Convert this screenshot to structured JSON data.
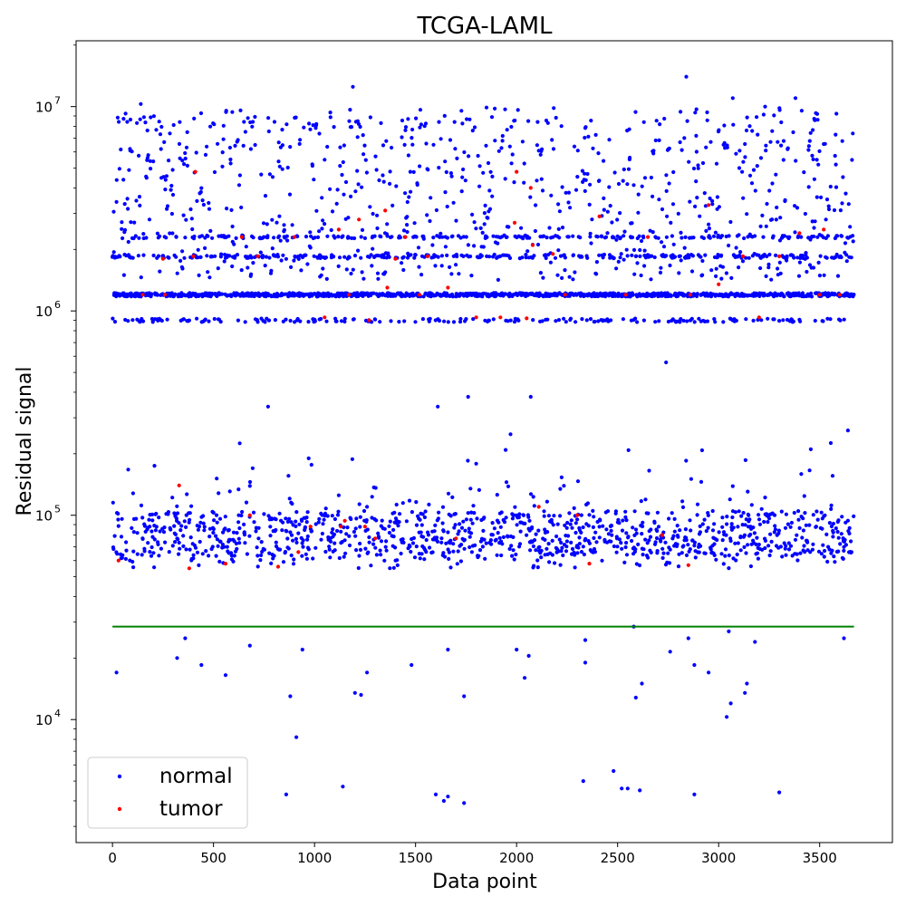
{
  "chart_data": {
    "type": "scatter",
    "title": "TCGA-LAML",
    "xlabel": "Data point",
    "ylabel": "Residual signal",
    "xlim": [
      -180,
      3860
    ],
    "ylim": [
      2500,
      21000000
    ],
    "yscale": "log",
    "grid": false,
    "legend_placement": "bottom-left",
    "x_ticks": [
      0,
      500,
      1000,
      1500,
      2000,
      2500,
      3000,
      3500
    ],
    "x_tick_labels": [
      "0",
      "500",
      "1000",
      "1500",
      "2000",
      "2500",
      "3000",
      "3500"
    ],
    "y_ticks": [
      10000,
      100000,
      1000000,
      10000000
    ],
    "y_tick_labels": [
      {
        "base": "10",
        "exp": "4"
      },
      {
        "base": "10",
        "exp": "5"
      },
      {
        "base": "10",
        "exp": "6"
      },
      {
        "base": "10",
        "exp": "7"
      }
    ],
    "threshold_line": {
      "y": 28500,
      "x": [
        0,
        3670
      ],
      "color": "#008000"
    },
    "series": [
      {
        "name": "normal",
        "color": "#0000ff",
        "n_points": 3670,
        "clusters": [
          {
            "label": "band ~1.2e6",
            "y": 1200000
          },
          {
            "label": "band ~0.9e6",
            "y": 900000
          },
          {
            "label": "band ~1.85e6",
            "y": 1850000
          },
          {
            "label": "band ~2.3e6",
            "y": 2300000
          },
          {
            "label": "upper spread",
            "y_range": [
              1400000,
              14000000
            ]
          },
          {
            "label": "lower cluster",
            "y_range": [
              40000,
              380000
            ]
          }
        ],
        "points": [
          [
            20,
            17000
          ],
          [
            320,
            20000
          ],
          [
            360,
            25000
          ],
          [
            440,
            18500
          ],
          [
            560,
            16500
          ],
          [
            680,
            23000
          ],
          [
            860,
            4300
          ],
          [
            880,
            13000
          ],
          [
            910,
            8200
          ],
          [
            940,
            22000
          ],
          [
            1140,
            4700
          ],
          [
            1200,
            13500
          ],
          [
            1230,
            13200
          ],
          [
            1260,
            17000
          ],
          [
            1480,
            18500
          ],
          [
            1600,
            4300
          ],
          [
            1640,
            4000
          ],
          [
            1660,
            4200
          ],
          [
            1660,
            22000
          ],
          [
            1740,
            3900
          ],
          [
            1740,
            13000
          ],
          [
            2000,
            22000
          ],
          [
            2040,
            16000
          ],
          [
            2060,
            20500
          ],
          [
            2330,
            5000
          ],
          [
            2340,
            19000
          ],
          [
            2340,
            24500
          ],
          [
            2480,
            5600
          ],
          [
            2520,
            4600
          ],
          [
            2550,
            4600
          ],
          [
            2580,
            28500
          ],
          [
            2590,
            12800
          ],
          [
            2610,
            4500
          ],
          [
            2620,
            15000
          ],
          [
            2760,
            21500
          ],
          [
            2850,
            25000
          ],
          [
            2880,
            4300
          ],
          [
            2880,
            18500
          ],
          [
            2950,
            17000
          ],
          [
            3040,
            10300
          ],
          [
            3050,
            27000
          ],
          [
            3060,
            12000
          ],
          [
            3130,
            13500
          ],
          [
            3140,
            15000
          ],
          [
            3180,
            24000
          ],
          [
            3300,
            4400
          ],
          [
            3620,
            25000
          ],
          [
            1190,
            12500000
          ],
          [
            2840,
            14000000
          ],
          [
            3070,
            11000000
          ],
          [
            3380,
            11000000
          ],
          [
            140,
            10300000
          ],
          [
            3230,
            10000000
          ],
          [
            2740,
            560000
          ],
          [
            1610,
            340000
          ],
          [
            770,
            340000
          ],
          [
            1760,
            380000
          ],
          [
            2070,
            380000
          ],
          [
            3640,
            260000
          ]
        ]
      },
      {
        "name": "tumor",
        "color": "#ff0000",
        "n_points": 60,
        "points": [
          [
            30,
            60000
          ],
          [
            250,
            1800000
          ],
          [
            260,
            1200000
          ],
          [
            330,
            140000
          ],
          [
            380,
            55000
          ],
          [
            400,
            1850000
          ],
          [
            410,
            4800000
          ],
          [
            560,
            58000
          ],
          [
            640,
            2300000
          ],
          [
            680,
            100000
          ],
          [
            820,
            56000
          ],
          [
            920,
            66000
          ],
          [
            980,
            88000
          ],
          [
            1120,
            2500000
          ],
          [
            1130,
            88000
          ],
          [
            1150,
            94000
          ],
          [
            1170,
            1200000
          ],
          [
            1220,
            2800000
          ],
          [
            1250,
            88000
          ],
          [
            1270,
            900000
          ],
          [
            1300,
            77000
          ],
          [
            1350,
            3100000
          ],
          [
            1360,
            1300000
          ],
          [
            1400,
            1800000
          ],
          [
            1520,
            1200000
          ],
          [
            1560,
            1850000
          ],
          [
            1660,
            1300000
          ],
          [
            1700,
            77000
          ],
          [
            1920,
            930000
          ],
          [
            1990,
            2700000
          ],
          [
            2000,
            4800000
          ],
          [
            2050,
            920000
          ],
          [
            2070,
            4000000
          ],
          [
            2080,
            2100000
          ],
          [
            2110,
            110000
          ],
          [
            2240,
            1200000
          ],
          [
            2300,
            100000
          ],
          [
            2360,
            58000
          ],
          [
            2410,
            2900000
          ],
          [
            2540,
            1200000
          ],
          [
            2720,
            80000
          ],
          [
            2850,
            57000
          ],
          [
            2860,
            1200000
          ],
          [
            2950,
            3300000
          ],
          [
            3000,
            1350000
          ],
          [
            3120,
            1850000
          ],
          [
            3400,
            2400000
          ],
          [
            3500,
            1200000
          ],
          [
            3520,
            2500000
          ],
          [
            150,
            1200000
          ],
          [
            720,
            1850000
          ],
          [
            1050,
            930000
          ],
          [
            1450,
            2300000
          ],
          [
            1800,
            930000
          ],
          [
            2180,
            1900000
          ],
          [
            2650,
            2300000
          ],
          [
            3200,
            930000
          ],
          [
            3300,
            1850000
          ],
          [
            3600,
            1200000
          ],
          [
            900,
            2300000
          ]
        ]
      }
    ]
  }
}
